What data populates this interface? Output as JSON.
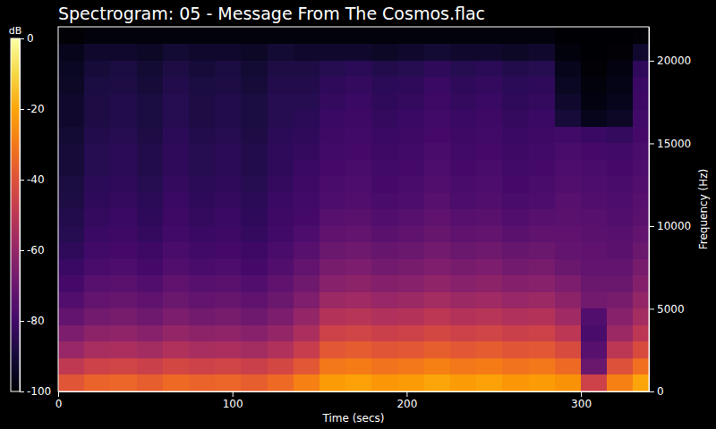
{
  "chart_data": {
    "type": "heatmap",
    "title": "Spectrogram: 05 - Message From The Cosmos.flac",
    "x_label": "Time (secs)",
    "y_label": "Frequency (Hz)",
    "xlim": [
      0,
      339
    ],
    "ylim": [
      0,
      22050
    ],
    "xticks": [
      0,
      100,
      200,
      300
    ],
    "yticks": [
      0,
      5000,
      10000,
      15000,
      20000
    ],
    "xbins": [
      0,
      15,
      30,
      45,
      60,
      75,
      90,
      105,
      120,
      135,
      150,
      165,
      180,
      195,
      210,
      225,
      240,
      255,
      270,
      285,
      300,
      315,
      330,
      339
    ],
    "ybins": [
      0,
      1000,
      2000,
      3000,
      4000,
      5000,
      6000,
      7000,
      8000,
      9000,
      10000,
      11000,
      12000,
      13000,
      14000,
      15000,
      16000,
      17000,
      18000,
      19000,
      20000,
      21000,
      22050
    ],
    "z": [
      [
        -39,
        -35,
        -34,
        -36,
        -33,
        -35,
        -34,
        -36,
        -33,
        -28,
        -22,
        -21,
        -23,
        -22,
        -20,
        -22,
        -21,
        -23,
        -22,
        -24,
        -45,
        -28,
        -20
      ],
      [
        -49,
        -45,
        -44,
        -46,
        -43,
        -45,
        -44,
        -46,
        -43,
        -38,
        -30,
        -29,
        -31,
        -30,
        -28,
        -30,
        -29,
        -31,
        -30,
        -33,
        -70,
        -40,
        -32
      ],
      [
        -59,
        -55,
        -54,
        -56,
        -53,
        -55,
        -54,
        -56,
        -53,
        -47,
        -38,
        -37,
        -39,
        -38,
        -36,
        -38,
        -37,
        -39,
        -38,
        -42,
        -75,
        -50,
        -42
      ],
      [
        -66,
        -62,
        -61,
        -63,
        -60,
        -62,
        -61,
        -63,
        -60,
        -54,
        -45,
        -44,
        -46,
        -45,
        -43,
        -45,
        -44,
        -46,
        -45,
        -50,
        -78,
        -58,
        -50
      ],
      [
        -72,
        -68,
        -67,
        -69,
        -66,
        -68,
        -67,
        -69,
        -66,
        -60,
        -52,
        -51,
        -53,
        -52,
        -50,
        -52,
        -51,
        -53,
        -52,
        -57,
        -76,
        -63,
        -56
      ],
      [
        -76,
        -72,
        -71,
        -73,
        -70,
        -72,
        -71,
        -73,
        -70,
        -65,
        -58,
        -57,
        -59,
        -58,
        -56,
        -58,
        -57,
        -59,
        -58,
        -62,
        -68,
        -67,
        -60
      ],
      [
        -79,
        -75,
        -74,
        -76,
        -73,
        -75,
        -74,
        -76,
        -73,
        -69,
        -63,
        -62,
        -64,
        -63,
        -61,
        -63,
        -62,
        -64,
        -63,
        -66,
        -70,
        -70,
        -64
      ],
      [
        -82,
        -78,
        -77,
        -79,
        -76,
        -78,
        -77,
        -79,
        -76,
        -72,
        -67,
        -66,
        -68,
        -67,
        -65,
        -67,
        -66,
        -68,
        -67,
        -70,
        -72,
        -72,
        -67
      ],
      [
        -84,
        -80,
        -79,
        -81,
        -78,
        -80,
        -79,
        -81,
        -78,
        -75,
        -70,
        -69,
        -71,
        -70,
        -68,
        -70,
        -69,
        -71,
        -70,
        -72,
        -73,
        -74,
        -70
      ],
      [
        -86,
        -82,
        -81,
        -83,
        -80,
        -82,
        -81,
        -83,
        -80,
        -77,
        -73,
        -72,
        -74,
        -73,
        -71,
        -73,
        -72,
        -74,
        -73,
        -73,
        -74,
        -75,
        -72
      ],
      [
        -87,
        -83,
        -82,
        -84,
        -81,
        -83,
        -82,
        -84,
        -81,
        -79,
        -75,
        -74,
        -76,
        -75,
        -73,
        -75,
        -74,
        -76,
        -75,
        -74,
        -75,
        -76,
        -74
      ],
      [
        -88,
        -84,
        -83,
        -85,
        -82,
        -84,
        -83,
        -85,
        -82,
        -80,
        -77,
        -76,
        -78,
        -77,
        -75,
        -77,
        -76,
        -78,
        -77,
        -75,
        -76,
        -77,
        -75
      ],
      [
        -89,
        -85,
        -84,
        -86,
        -83,
        -85,
        -84,
        -86,
        -83,
        -81,
        -78,
        -77,
        -79,
        -78,
        -76,
        -78,
        -77,
        -79,
        -78,
        -76,
        -77,
        -78,
        -76
      ],
      [
        -90,
        -86,
        -85,
        -87,
        -84,
        -86,
        -85,
        -87,
        -84,
        -82,
        -79,
        -78,
        -80,
        -79,
        -77,
        -79,
        -78,
        -80,
        -79,
        -77,
        -78,
        -79,
        -77
      ],
      [
        -90,
        -86,
        -85,
        -87,
        -84,
        -86,
        -85,
        -87,
        -84,
        -83,
        -80,
        -79,
        -81,
        -80,
        -78,
        -80,
        -79,
        -81,
        -80,
        -78,
        -79,
        -80,
        -78
      ],
      [
        -91,
        -87,
        -86,
        -88,
        -85,
        -87,
        -86,
        -88,
        -85,
        -84,
        -81,
        -80,
        -82,
        -81,
        -79,
        -81,
        -80,
        -82,
        -81,
        -80,
        -82,
        -83,
        -79
      ],
      [
        -92,
        -88,
        -87,
        -89,
        -86,
        -88,
        -87,
        -89,
        -86,
        -85,
        -82,
        -81,
        -83,
        -82,
        -80,
        -82,
        -81,
        -83,
        -82,
        -90,
        -95,
        -93,
        -80
      ],
      [
        -92,
        -88,
        -87,
        -89,
        -86,
        -88,
        -87,
        -89,
        -86,
        -86,
        -83,
        -82,
        -84,
        -83,
        -81,
        -83,
        -82,
        -84,
        -83,
        -92,
        -97,
        -95,
        -81
      ],
      [
        -93,
        -89,
        -88,
        -90,
        -87,
        -89,
        -88,
        -90,
        -87,
        -87,
        -84,
        -83,
        -85,
        -84,
        -82,
        -84,
        -83,
        -85,
        -84,
        -94,
        -98,
        -96,
        -82
      ],
      [
        -94,
        -90,
        -89,
        -91,
        -88,
        -90,
        -89,
        -91,
        -88,
        -88,
        -86,
        -85,
        -87,
        -86,
        -84,
        -86,
        -85,
        -87,
        -86,
        -95,
        -99,
        -97,
        -84
      ],
      [
        -95,
        -92,
        -92,
        -93,
        -91,
        -92,
        -92,
        -93,
        -91,
        -92,
        -92,
        -92,
        -93,
        -92,
        -91,
        -92,
        -92,
        -93,
        -92,
        -98,
        -100,
        -99,
        -92
      ],
      [
        -99,
        -98,
        -98,
        -98,
        -98,
        -98,
        -98,
        -98,
        -98,
        -98,
        -98,
        -98,
        -98,
        -98,
        -98,
        -98,
        -98,
        -98,
        -98,
        -100,
        -100,
        -100,
        -99
      ]
    ],
    "colorbar": {
      "label": "dB",
      "range": [
        -100,
        0
      ],
      "ticks": [
        0,
        -20,
        -40,
        -60,
        -80,
        -100
      ]
    }
  }
}
